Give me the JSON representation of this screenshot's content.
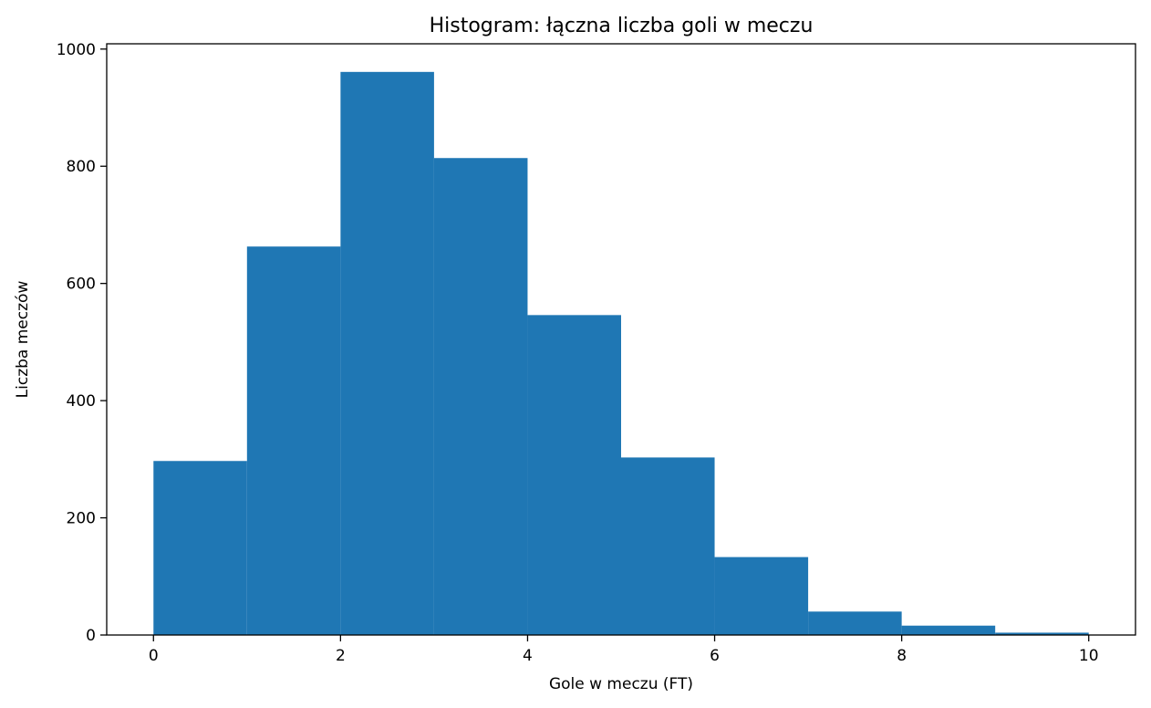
{
  "chart_data": {
    "type": "bar",
    "title": "Histogram: łączna liczba goli w meczu",
    "xlabel": "Gole w meczu (FT)",
    "ylabel": "Liczba meczów",
    "bins": [
      {
        "start": 0,
        "end": 1,
        "value": 297
      },
      {
        "start": 1,
        "end": 2,
        "value": 663
      },
      {
        "start": 2,
        "end": 3,
        "value": 961
      },
      {
        "start": 3,
        "end": 4,
        "value": 814
      },
      {
        "start": 4,
        "end": 5,
        "value": 546
      },
      {
        "start": 5,
        "end": 6,
        "value": 303
      },
      {
        "start": 6,
        "end": 7,
        "value": 133
      },
      {
        "start": 7,
        "end": 8,
        "value": 40
      },
      {
        "start": 8,
        "end": 9,
        "value": 16
      },
      {
        "start": 9,
        "end": 10,
        "value": 4
      }
    ],
    "xlim": [
      -0.5,
      10.5
    ],
    "ylim": [
      0,
      1009
    ],
    "x_ticks": [
      "0",
      "2",
      "4",
      "6",
      "8",
      "10"
    ],
    "y_ticks": [
      "0",
      "200",
      "400",
      "600",
      "800",
      "1000"
    ],
    "grid": false,
    "bar_color": "#1f77b4"
  }
}
